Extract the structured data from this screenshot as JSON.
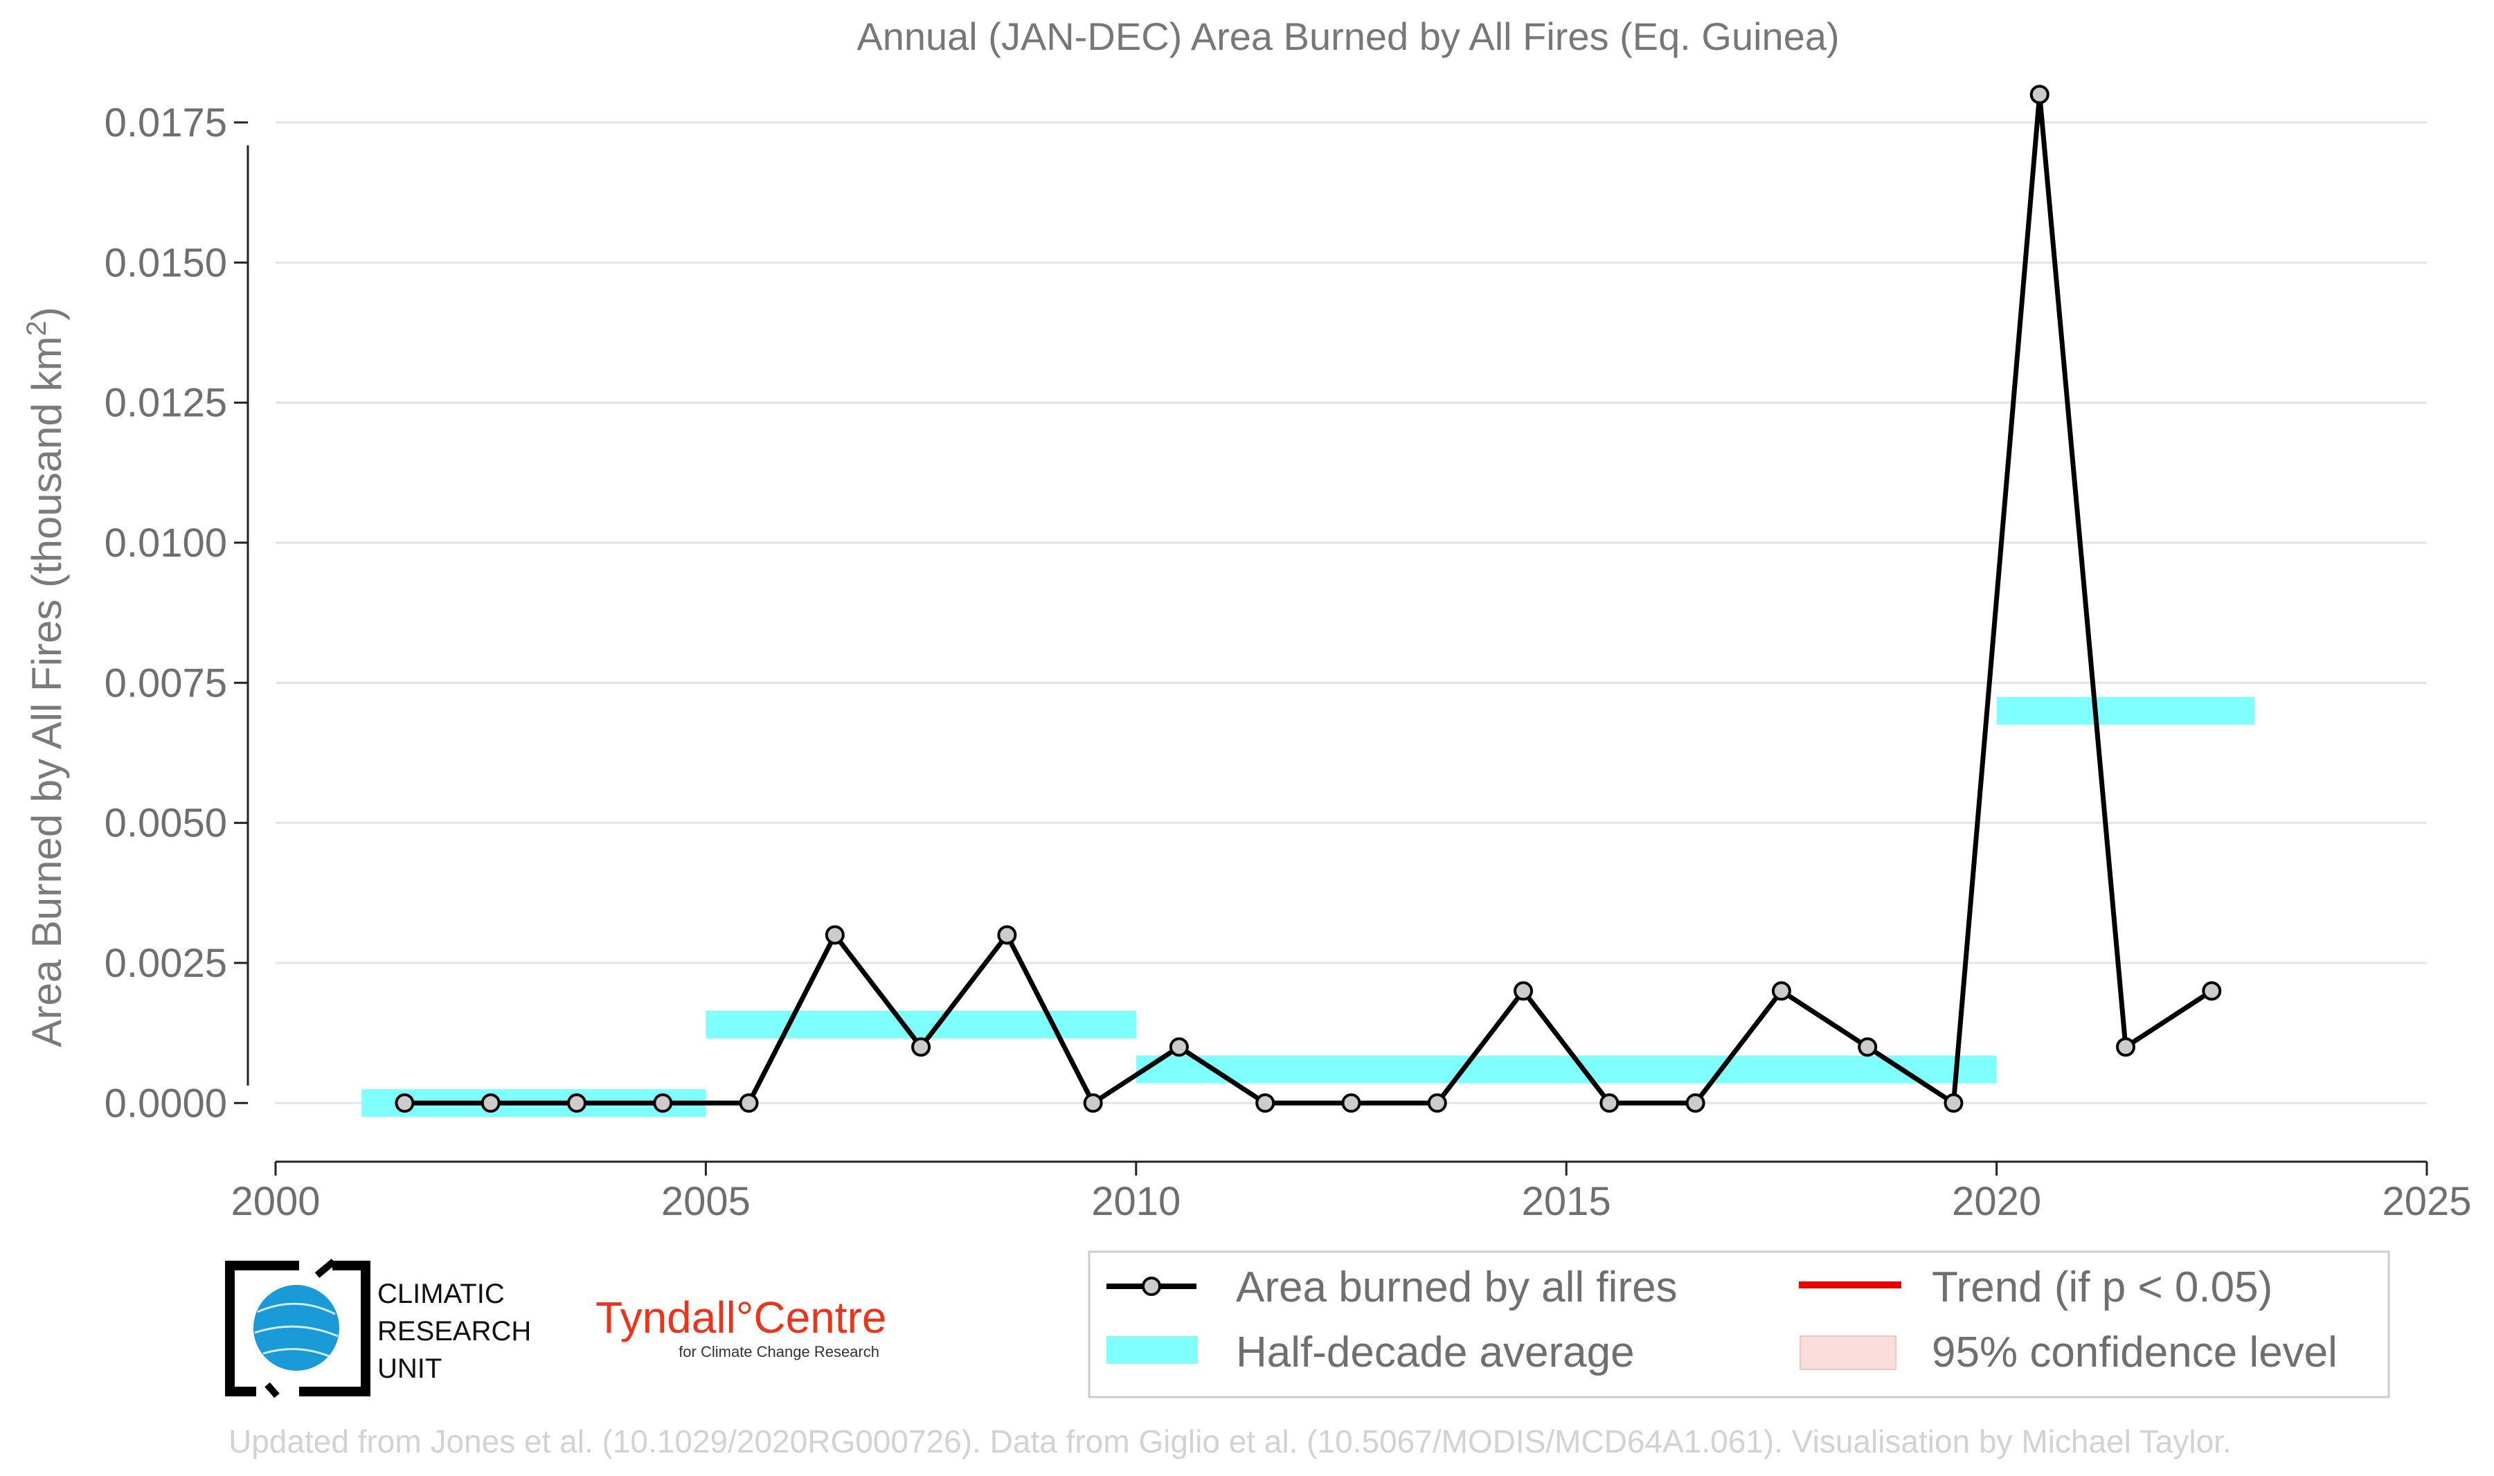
{
  "chart_data": {
    "type": "line",
    "title": "Annual (JAN-DEC) Area Burned by All Fires (Eq. Guinea)",
    "ylabel": "Area Burned by All Fires (thousand km",
    "ylabel_sup": "2",
    "ylabel_close": ")",
    "xlabel": "",
    "xlim": [
      2000,
      2025
    ],
    "ylim": [
      -0.0008,
      0.0185
    ],
    "x_ticks": [
      2000,
      2005,
      2010,
      2015,
      2020,
      2025
    ],
    "y_ticks": [
      0.0,
      0.0025,
      0.005,
      0.0075,
      0.01,
      0.0125,
      0.015,
      0.0175
    ],
    "y_tick_labels": [
      "0.0000",
      "0.0025",
      "0.0050",
      "0.0075",
      "0.0100",
      "0.0125",
      "0.0150",
      "0.0175"
    ],
    "grid": true,
    "series": [
      {
        "name": "Area burned by all fires",
        "color": "#000000",
        "marker_fill": "#cccccc",
        "x": [
          2001.5,
          2002.5,
          2003.5,
          2004.5,
          2005.5,
          2006.5,
          2007.5,
          2008.5,
          2009.5,
          2010.5,
          2011.5,
          2012.5,
          2013.5,
          2014.5,
          2015.5,
          2016.5,
          2017.5,
          2018.5,
          2019.5,
          2020.5,
          2021.5,
          2022.5
        ],
        "values": [
          0.0,
          0.0,
          0.0,
          0.0,
          0.0,
          0.003,
          0.001,
          0.003,
          0.0,
          0.001,
          0.0,
          0.0,
          0.0,
          0.002,
          0.0,
          0.0,
          0.002,
          0.001,
          0.0,
          0.018,
          0.001,
          0.002
        ]
      }
    ],
    "half_decade_average": {
      "name": "Half-decade average",
      "color": "#7fffff",
      "segments": [
        {
          "x_start": 2001,
          "x_end": 2005,
          "value": 0.0
        },
        {
          "x_start": 2005,
          "x_end": 2010,
          "value": 0.0014
        },
        {
          "x_start": 2010,
          "x_end": 2020,
          "value": 0.0006
        },
        {
          "x_start": 2020,
          "x_end": 2023,
          "value": 0.007
        }
      ]
    },
    "legend": {
      "placement": "bottom-right",
      "items": [
        {
          "label": "Area burned by all fires",
          "kind": "line-marker",
          "color": "#000000"
        },
        {
          "label": "Trend (if p < 0.05)",
          "kind": "line",
          "color": "#ee0000"
        },
        {
          "label": "Half-decade average",
          "kind": "band",
          "color": "#7fffff"
        },
        {
          "label": "95% confidence level",
          "kind": "band",
          "color": "#fbdcdc"
        }
      ]
    }
  },
  "logos": {
    "cru": [
      "CLIMATIC",
      "RESEARCH",
      "UNIT"
    ],
    "tyndall_main": "Tyndall°Centre",
    "tyndall_sub": "for Climate Change Research"
  },
  "credits": "Updated from Jones et al. (10.1029/2020RG000726). Data from Giglio et al. (10.5067/MODIS/MCD64A1.061). Visualisation by Michael Taylor."
}
